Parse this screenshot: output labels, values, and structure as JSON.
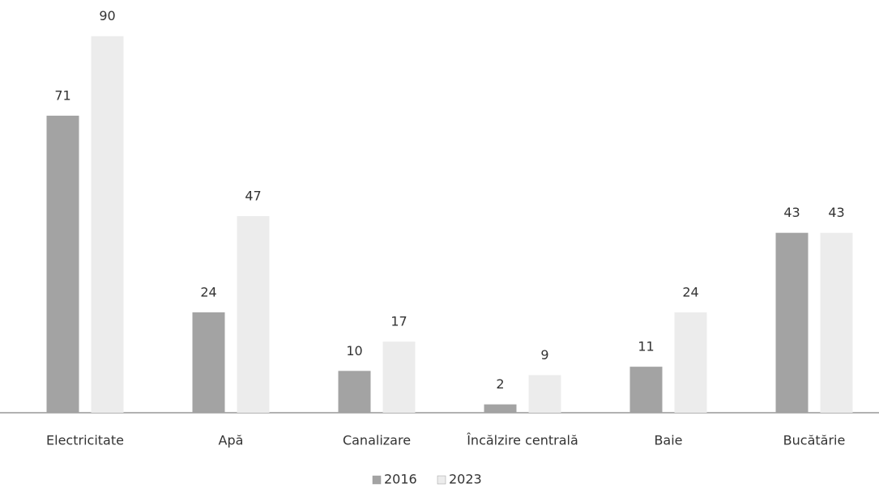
{
  "chart_data": {
    "type": "bar",
    "categories": [
      "Electricitate",
      "Apă",
      "Canalizare",
      "Încălzire centrală",
      "Baie",
      "Bucătărie"
    ],
    "series": [
      {
        "name": "2016",
        "color": "#a3a3a3",
        "values": [
          71,
          24,
          10,
          2,
          11,
          43
        ]
      },
      {
        "name": "2023",
        "color": "#ececec",
        "values": [
          90,
          47,
          17,
          9,
          24,
          43
        ]
      }
    ],
    "legend": "bottom"
  }
}
